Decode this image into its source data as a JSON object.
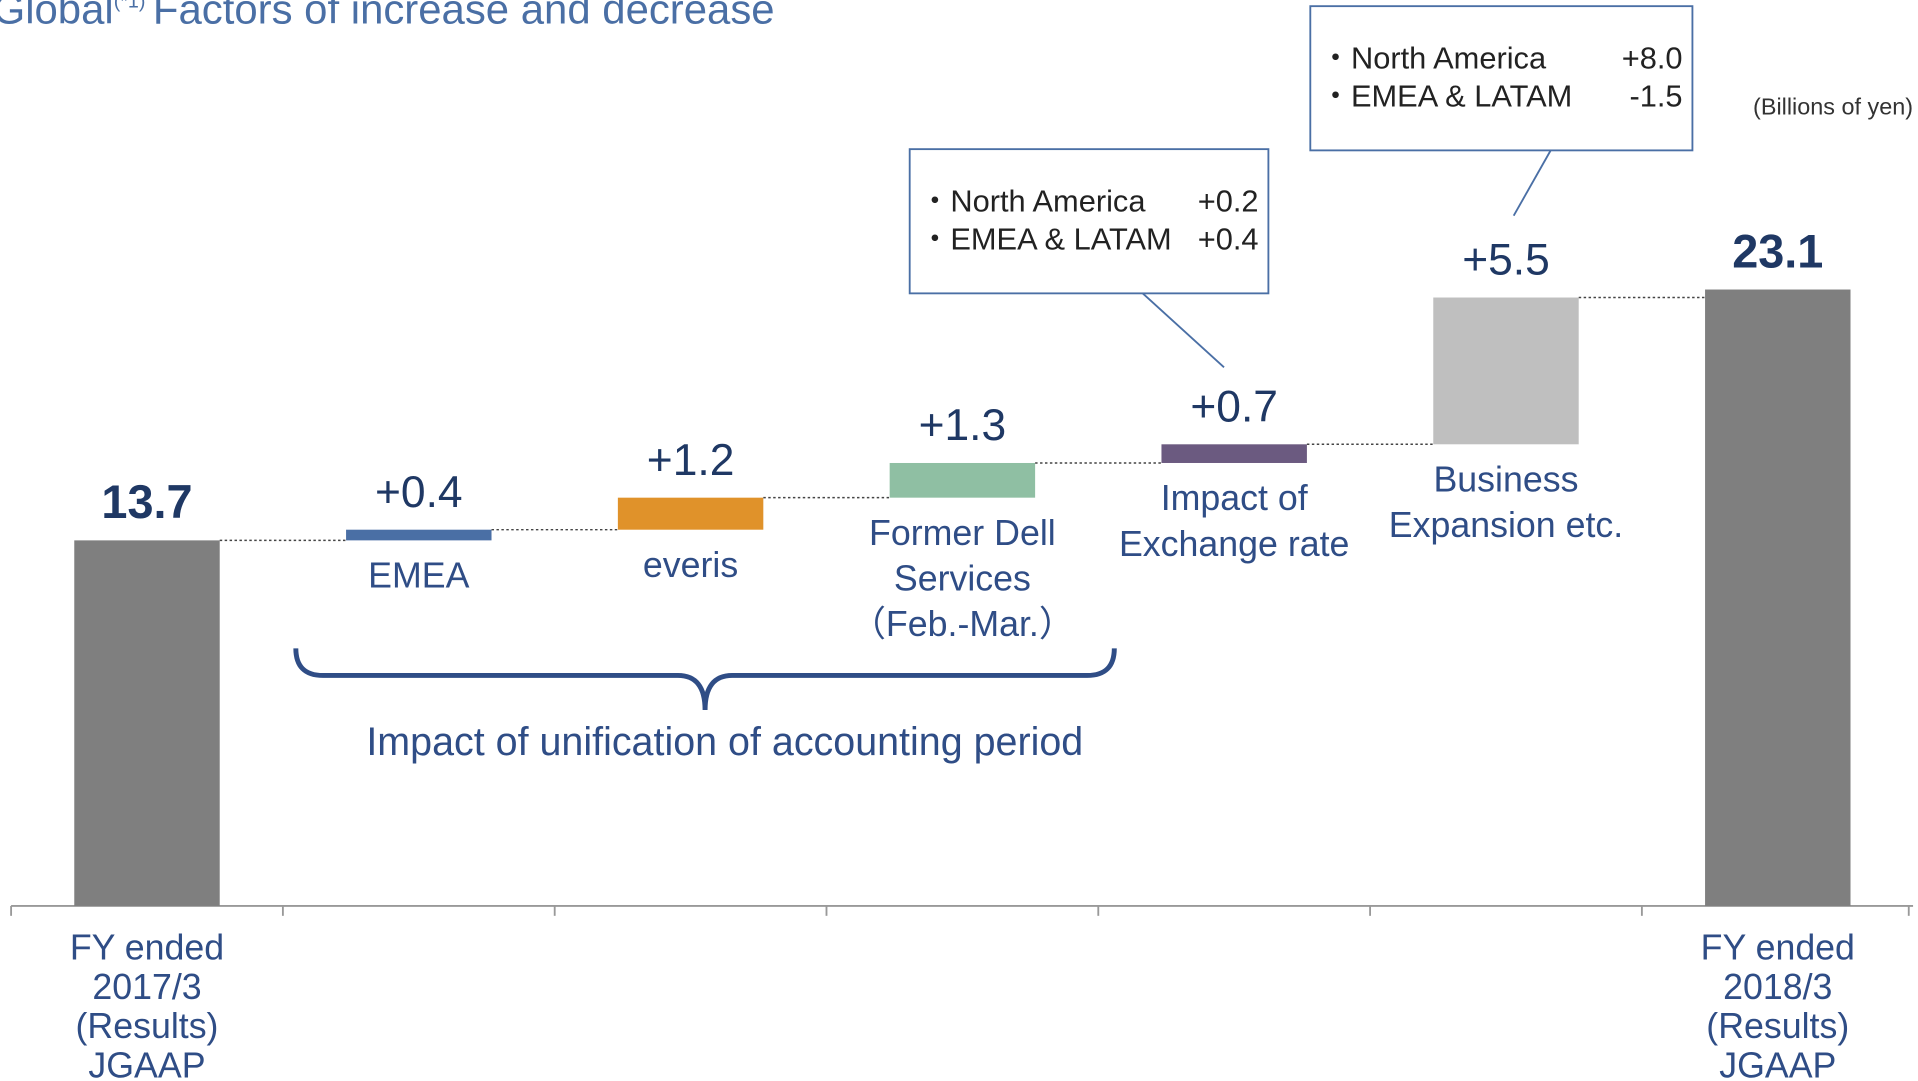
{
  "chart_data": {
    "type": "waterfall",
    "title": "Global",
    "title_note": "(*1)",
    "title_rest": "Factors of increase and decrease",
    "unit": "(Billions of yen)",
    "categories": [
      [
        "FY ended",
        "2017/3",
        "(Results)",
        "JGAAP"
      ],
      [
        "EMEA"
      ],
      [
        "everis"
      ],
      [
        "Former Dell",
        "Services",
        "（Feb.-Mar.）"
      ],
      [
        "Impact of",
        "Exchange rate"
      ],
      [
        "Business",
        "Expansion etc."
      ],
      [
        "FY ended",
        "2018/3",
        "(Results)",
        "JGAAP"
      ]
    ],
    "measures": [
      "total",
      "relative",
      "relative",
      "relative",
      "relative",
      "relative",
      "total"
    ],
    "values": [
      13.7,
      0.4,
      1.2,
      1.3,
      0.7,
      5.5,
      23.1
    ],
    "value_labels": [
      "13.7",
      "+0.4",
      "+1.2",
      "+1.3",
      "+0.7",
      "+5.5",
      "23.1"
    ],
    "colors": [
      "#7f7f7f",
      "#4a6fa5",
      "#e0922a",
      "#8fbfa3",
      "#6b5a80",
      "#bfbfbf",
      "#7f7f7f"
    ],
    "annotations": [
      {
        "target": 4,
        "rows": [
          [
            "・North America",
            "+0.2"
          ],
          [
            "・EMEA & LATAM",
            "+0.4"
          ]
        ]
      },
      {
        "target": 5,
        "rows": [
          [
            "・North America",
            "+8.0"
          ],
          [
            "・EMEA & LATAM",
            "-1.5"
          ]
        ]
      }
    ],
    "brace_label": "Impact of unification of accounting period"
  }
}
